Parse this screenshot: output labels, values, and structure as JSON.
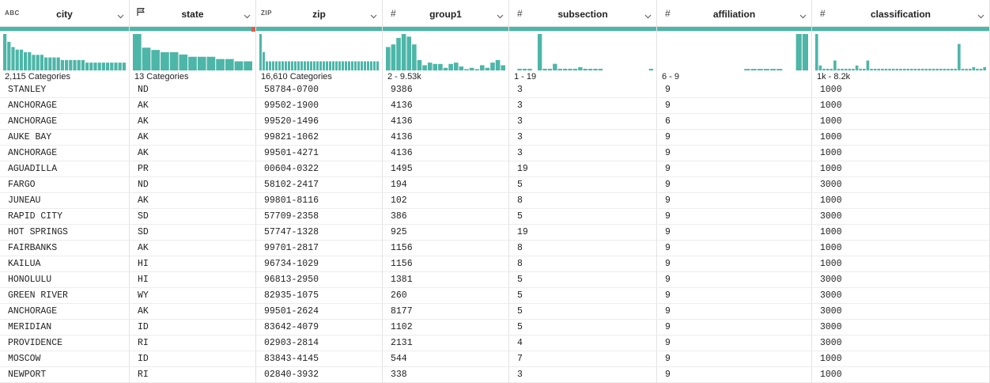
{
  "columns": [
    {
      "key": "city",
      "type_label": "ABC",
      "name": "city",
      "summary": "2,115 Categories",
      "hist": [
        14,
        11,
        9,
        8,
        8,
        7,
        7,
        6,
        6,
        6,
        5,
        5,
        5,
        5,
        4,
        4,
        4,
        4,
        4,
        4,
        3,
        3,
        3,
        3,
        3,
        3,
        3,
        3,
        3,
        3
      ]
    },
    {
      "key": "state",
      "type_label": "flag-icon",
      "name": "state",
      "summary": "13 Categories",
      "hist": [
        16,
        10,
        9,
        8,
        8,
        7,
        6,
        6,
        6,
        5,
        5,
        4,
        4
      ]
    },
    {
      "key": "zip",
      "type_label": "ZIP",
      "name": "zip",
      "summary": "16,610 Categories",
      "hist": [
        4,
        2,
        1,
        1,
        1,
        1,
        1,
        1,
        1,
        1,
        1,
        1,
        1,
        1,
        1,
        1,
        1,
        1,
        1,
        1,
        1,
        1,
        1,
        1,
        1,
        1,
        1,
        1,
        1,
        1,
        1,
        1,
        1,
        1,
        1,
        1,
        1,
        1
      ]
    },
    {
      "key": "group1",
      "type_label": "#",
      "name": "group1",
      "summary": "2 - 9.53k",
      "hist": [
        18,
        20,
        25,
        28,
        26,
        20,
        8,
        4,
        6,
        5,
        5,
        2,
        5,
        6,
        3,
        1,
        2,
        1,
        4,
        2,
        6,
        8,
        4
      ]
    },
    {
      "key": "subsection",
      "type_label": "#",
      "name": "subsection",
      "summary": "1 - 19",
      "hist": [
        0,
        1,
        1,
        1,
        0,
        22,
        1,
        1,
        4,
        1,
        1,
        1,
        1,
        2,
        1,
        1,
        1,
        1,
        0,
        0,
        0,
        0,
        0,
        0,
        0,
        0,
        0,
        1
      ]
    },
    {
      "key": "affiliation",
      "type_label": "#",
      "name": "affiliation",
      "summary": "6 - 9",
      "hist": [
        0,
        0,
        0,
        0,
        0,
        0,
        0,
        0,
        0,
        0,
        0,
        0,
        0,
        1,
        1,
        1,
        1,
        1,
        1,
        0,
        0,
        24,
        24
      ]
    },
    {
      "key": "classification",
      "type_label": "#",
      "name": "classification",
      "summary": "1k - 8.2k",
      "hist": [
        22,
        3,
        1,
        1,
        1,
        6,
        1,
        1,
        1,
        1,
        1,
        3,
        1,
        1,
        6,
        1,
        1,
        1,
        1,
        1,
        1,
        1,
        1,
        1,
        1,
        1,
        1,
        1,
        1,
        1,
        1,
        1,
        1,
        1,
        1,
        1,
        1,
        1,
        1,
        16,
        1,
        1,
        1,
        2,
        1,
        1,
        2
      ]
    }
  ],
  "rows": [
    [
      "STANLEY",
      "ND",
      "58784-0700",
      "9386",
      "3",
      "9",
      "1000"
    ],
    [
      "ANCHORAGE",
      "AK",
      "99502-1900",
      "4136",
      "3",
      "9",
      "1000"
    ],
    [
      "ANCHORAGE",
      "AK",
      "99520-1496",
      "4136",
      "3",
      "6",
      "1000"
    ],
    [
      "AUKE BAY",
      "AK",
      "99821-1062",
      "4136",
      "3",
      "9",
      "1000"
    ],
    [
      "ANCHORAGE",
      "AK",
      "99501-4271",
      "4136",
      "3",
      "9",
      "1000"
    ],
    [
      "AGUADILLA",
      "PR",
      "00604-0322",
      "1495",
      "19",
      "9",
      "1000"
    ],
    [
      "FARGO",
      "ND",
      "58102-2417",
      "194",
      "5",
      "9",
      "3000"
    ],
    [
      "JUNEAU",
      "AK",
      "99801-8116",
      "102",
      "8",
      "9",
      "1000"
    ],
    [
      "RAPID CITY",
      "SD",
      "57709-2358",
      "386",
      "5",
      "9",
      "3000"
    ],
    [
      "HOT SPRINGS",
      "SD",
      "57747-1328",
      "925",
      "19",
      "9",
      "1000"
    ],
    [
      "FAIRBANKS",
      "AK",
      "99701-2817",
      "1156",
      "8",
      "9",
      "1000"
    ],
    [
      "KAILUA",
      "HI",
      "96734-1029",
      "1156",
      "8",
      "9",
      "1000"
    ],
    [
      "HONOLULU",
      "HI",
      "96813-2950",
      "1381",
      "5",
      "9",
      "3000"
    ],
    [
      "GREEN RIVER",
      "WY",
      "82935-1075",
      "260",
      "5",
      "9",
      "3000"
    ],
    [
      "ANCHORAGE",
      "AK",
      "99501-2624",
      "8177",
      "5",
      "9",
      "3000"
    ],
    [
      "MERIDIAN",
      "ID",
      "83642-4079",
      "1102",
      "5",
      "9",
      "3000"
    ],
    [
      "PROVIDENCE",
      "RI",
      "02903-2814",
      "2131",
      "4",
      "9",
      "3000"
    ],
    [
      "MOSCOW",
      "ID",
      "83843-4145",
      "544",
      "7",
      "9",
      "1000"
    ],
    [
      "NEWPORT",
      "RI",
      "02840-3932",
      "338",
      "3",
      "9",
      "1000"
    ]
  ],
  "accent": "#4db6a8"
}
